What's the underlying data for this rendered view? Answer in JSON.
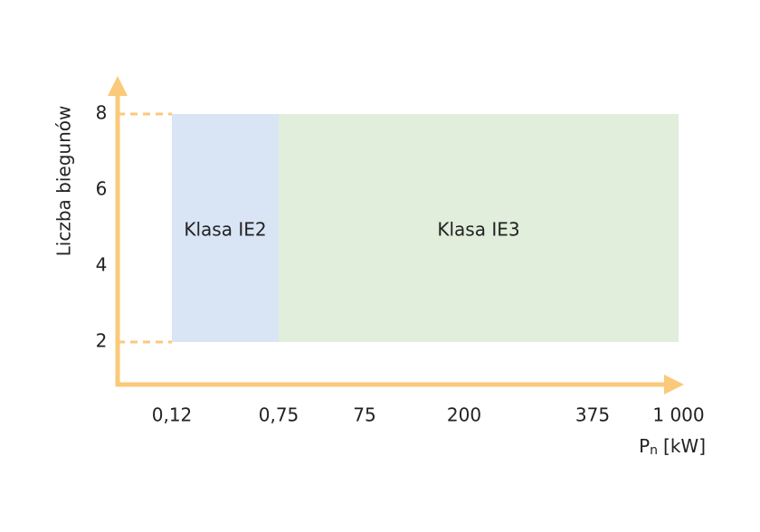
{
  "chart_data": {
    "type": "region",
    "ylabel": "Liczba biegunów",
    "xlabel": {
      "symbol": "P",
      "subscript": "n",
      "unit": "[kW]"
    },
    "xticks": [
      {
        "value": 0.12,
        "label": "0,12"
      },
      {
        "value": 0.75,
        "label": "0,75"
      },
      75,
      200,
      375,
      {
        "value": 1000,
        "label": "1 000"
      }
    ],
    "ylim": [
      1,
      9
    ],
    "yticks": [
      2,
      4,
      6,
      8
    ],
    "axis_color": "#fbc97a",
    "regions": [
      {
        "name": "Klasa IE2",
        "color": "#d9e4f5",
        "x": [
          0.12,
          0.75
        ],
        "y": [
          2,
          8
        ]
      },
      {
        "name": "Klasa IE3",
        "color": "#e0eedb",
        "x": [
          0.75,
          1000
        ],
        "y": [
          2,
          8
        ]
      }
    ]
  }
}
